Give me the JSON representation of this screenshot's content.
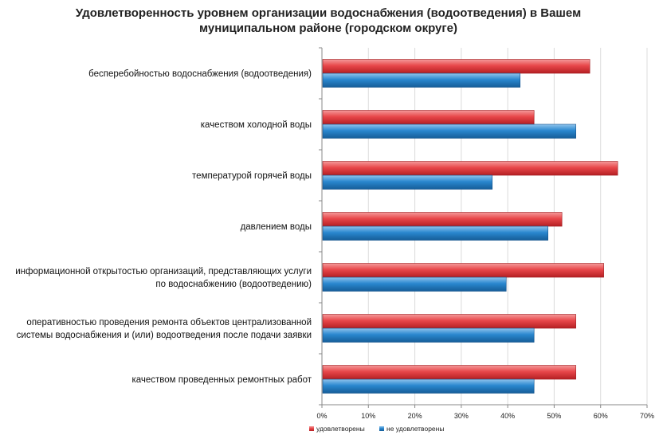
{
  "chart_data": {
    "type": "bar",
    "orientation": "horizontal",
    "title": [
      "Удовлетворенность уровнем организации водоснабжения (водоотведения) в Вашем",
      "муниципальном районе (городском округе)"
    ],
    "categories": [
      [
        "бесперебойностью водоснабжения (водоотведения)"
      ],
      [
        "качеством холодной воды"
      ],
      [
        "температурой горячей воды"
      ],
      [
        "давлением воды"
      ],
      [
        "информационной открытостью организаций, представляющих услуги",
        "по водоснабжению (водоотведению)"
      ],
      [
        "оперативностью проведения  ремонта объектов централизованной",
        "системы водоснабжения и (или) водоотведения  после подачи заявки"
      ],
      [
        "качеством проведенных ремонтных работ"
      ]
    ],
    "series": [
      {
        "name": "удовлетворены",
        "color": "#e03a3e",
        "values": [
          57.5,
          45.5,
          63.5,
          51.5,
          60.5,
          54.5,
          54.5
        ]
      },
      {
        "name": "не удовлетворены",
        "color": "#1f78c1",
        "values": [
          42.5,
          54.5,
          36.5,
          48.5,
          39.5,
          45.5,
          45.5
        ]
      }
    ],
    "xlim": [
      0,
      70
    ],
    "xticks": [
      0,
      10,
      20,
      30,
      40,
      50,
      60,
      70
    ],
    "tick_suffix": "%",
    "grid": true,
    "legend_position": "bottom"
  }
}
